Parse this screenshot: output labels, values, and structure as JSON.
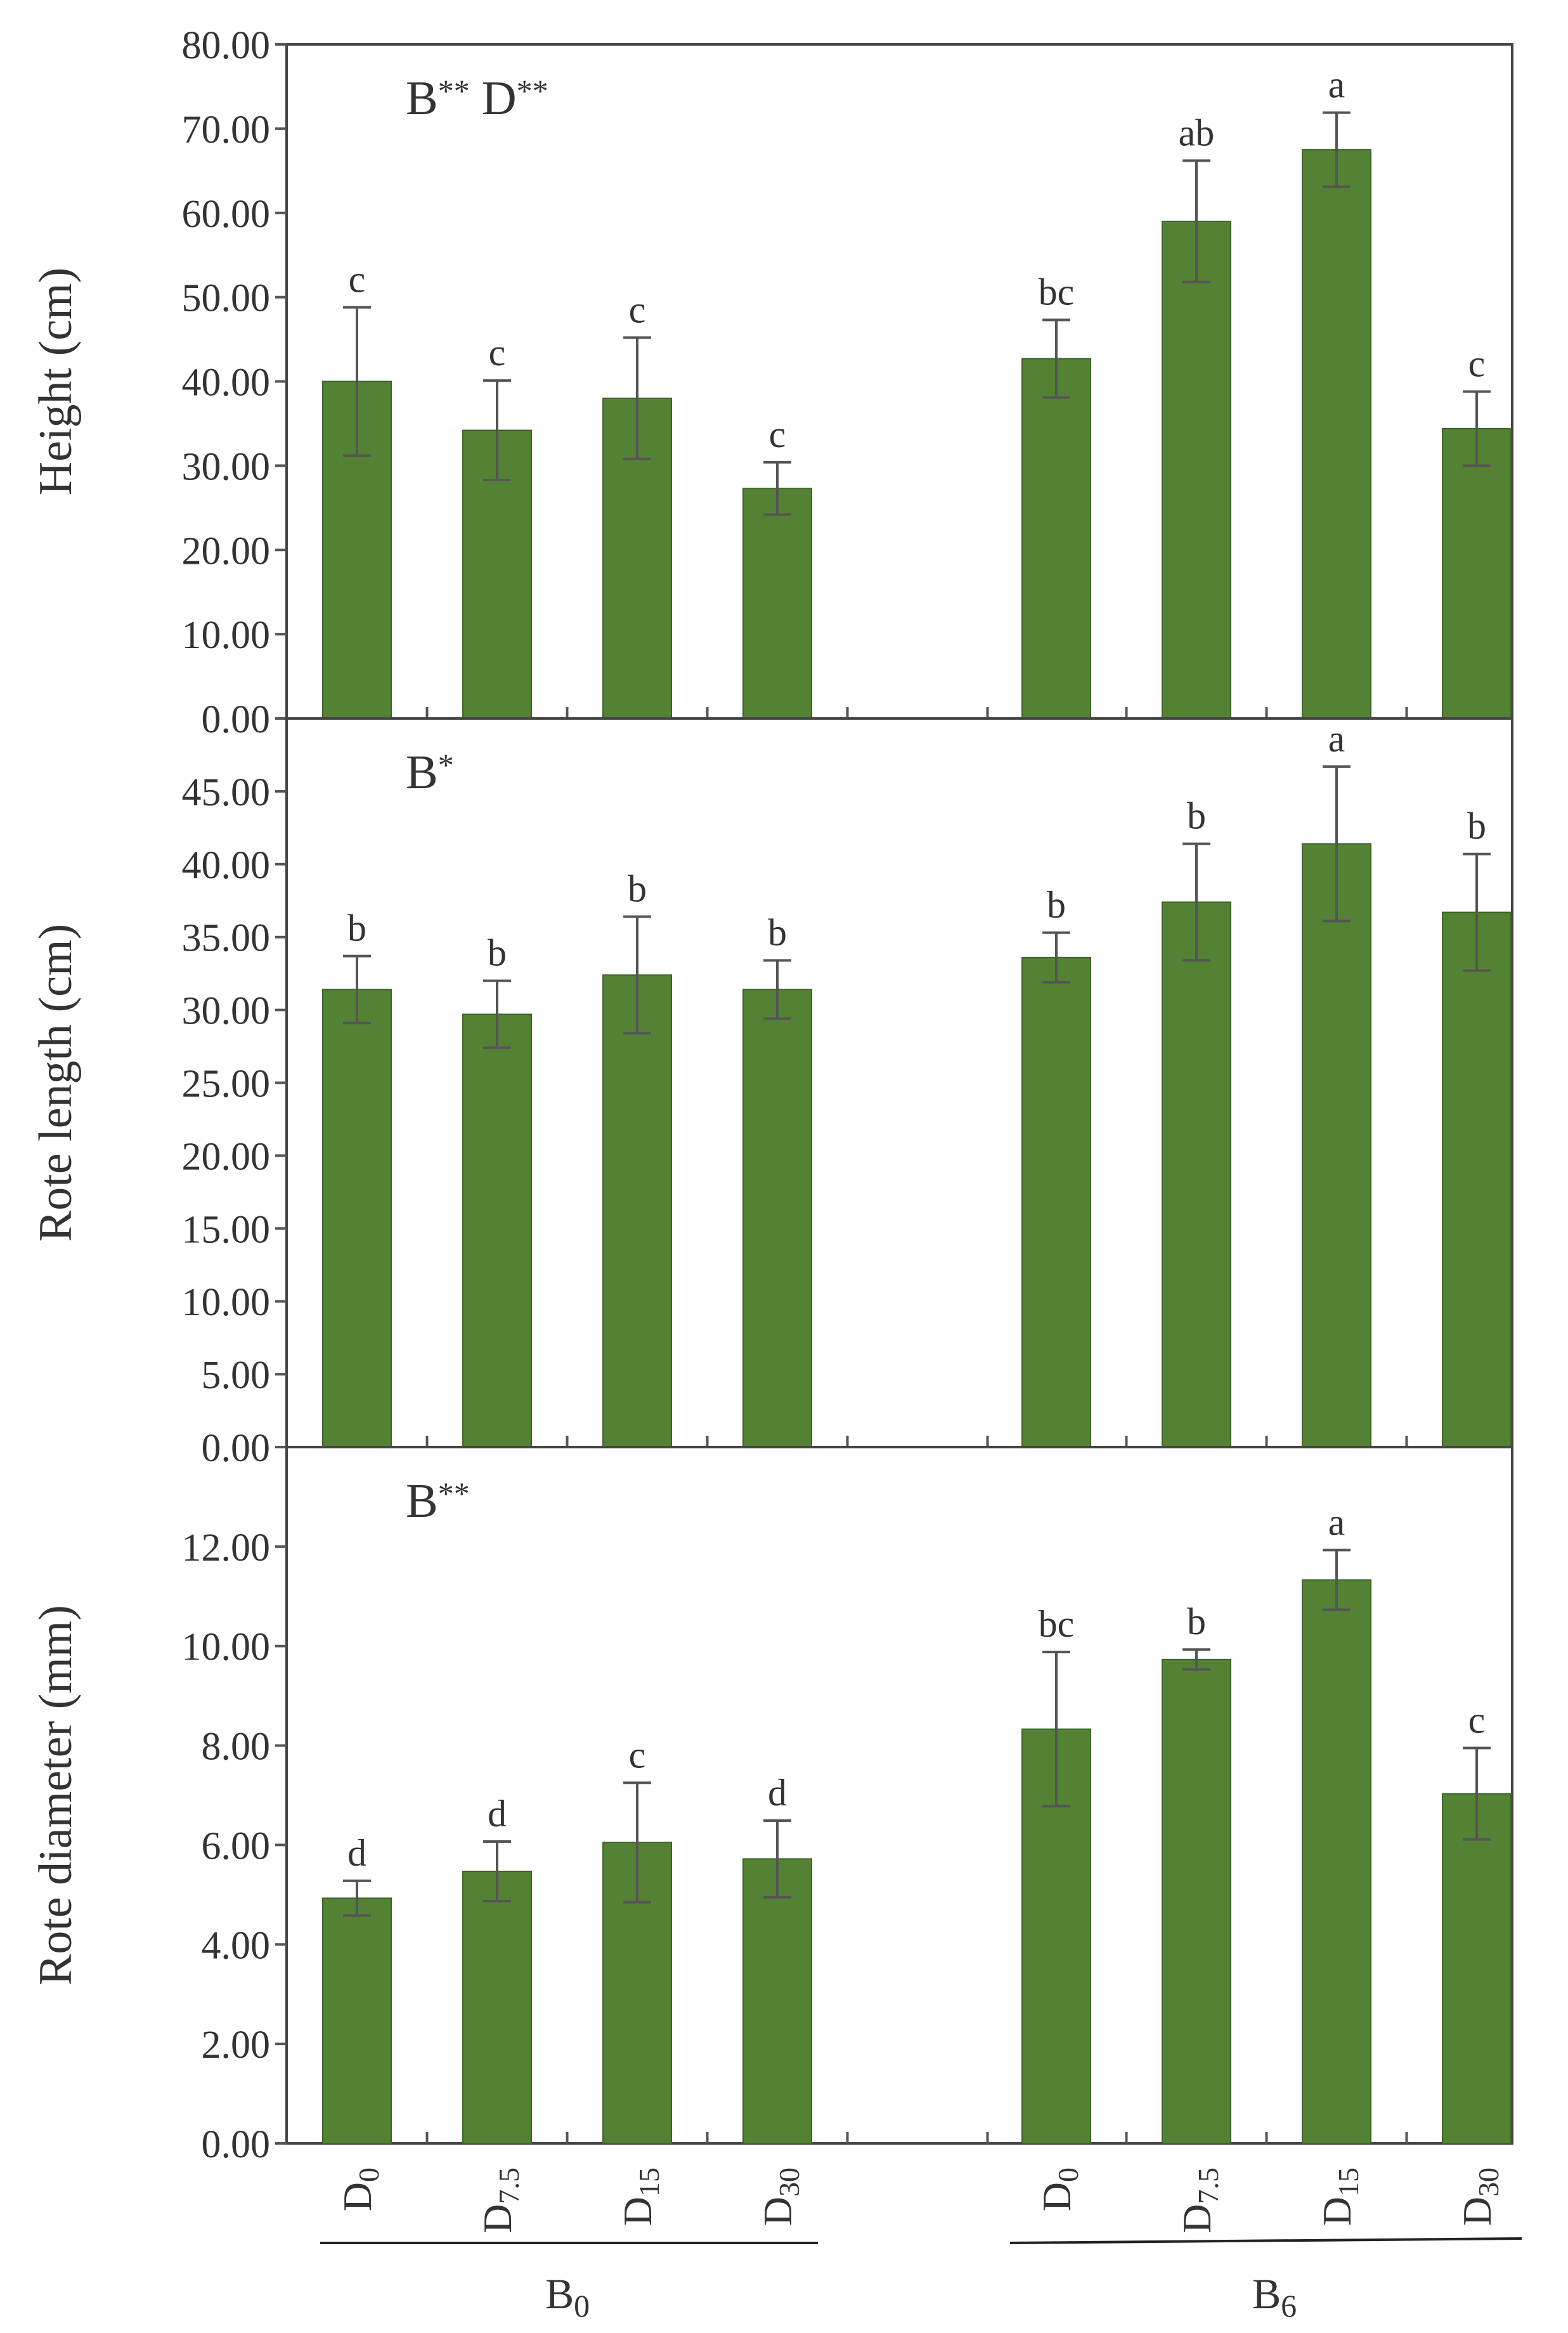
{
  "chart_data": [
    {
      "type": "bar",
      "ylabel": "Height (cm)",
      "ylim": [
        0,
        80
      ],
      "yticks": [
        0,
        10,
        20,
        30,
        40,
        50,
        60,
        70,
        80
      ],
      "tick_format": "0.00",
      "annotation": {
        "main": "B",
        "sup": "**",
        "main2": "D",
        "sup2": "**"
      },
      "categories": [
        "D0",
        "D7.5",
        "D15",
        "D30",
        "D0",
        "D7.5",
        "D15",
        "D30"
      ],
      "groups": [
        "B0",
        "B0",
        "B0",
        "B0",
        "B6",
        "B6",
        "B6",
        "B6"
      ],
      "values": [
        40.0,
        34.2,
        38.0,
        27.3,
        42.7,
        59.0,
        67.5,
        34.4
      ],
      "errors": [
        8.8,
        5.9,
        7.2,
        3.1,
        4.6,
        7.2,
        4.4,
        4.4
      ],
      "letters": [
        "c",
        "c",
        "c",
        "c",
        "bc",
        "ab",
        "a",
        "c"
      ]
    },
    {
      "type": "bar",
      "ylabel": "Rote length (cm)",
      "ylim": [
        0,
        50
      ],
      "yticks": [
        0,
        5,
        10,
        15,
        20,
        25,
        30,
        35,
        40,
        45
      ],
      "tick_format": "0.00",
      "annotation": {
        "main": "B",
        "sup": "*",
        "main2": "",
        "sup2": ""
      },
      "categories": [
        "D0",
        "D7.5",
        "D15",
        "D30",
        "D0",
        "D7.5",
        "D15",
        "D30"
      ],
      "groups": [
        "B0",
        "B0",
        "B0",
        "B0",
        "B6",
        "B6",
        "B6",
        "B6"
      ],
      "values": [
        31.4,
        29.7,
        32.4,
        31.4,
        33.6,
        37.4,
        41.4,
        36.7
      ],
      "errors": [
        2.3,
        2.3,
        4.0,
        2.0,
        1.7,
        4.0,
        5.3,
        4.0
      ],
      "letters": [
        "b",
        "b",
        "b",
        "b",
        "b",
        "b",
        "a",
        "b"
      ]
    },
    {
      "type": "bar",
      "ylabel": "Rote diameter (mm)",
      "ylim": [
        0,
        14
      ],
      "yticks": [
        0,
        2,
        4,
        6,
        8,
        10,
        12
      ],
      "tick_format": "0.00",
      "annotation": {
        "main": "B",
        "sup": "**",
        "main2": "",
        "sup2": ""
      },
      "categories": [
        "D0",
        "D7.5",
        "D15",
        "D30",
        "D0",
        "D7.5",
        "D15",
        "D30"
      ],
      "groups": [
        "B0",
        "B0",
        "B0",
        "B0",
        "B6",
        "B6",
        "B6",
        "B6"
      ],
      "values": [
        4.93,
        5.47,
        6.05,
        5.72,
        8.33,
        9.73,
        11.33,
        7.03
      ],
      "errors": [
        0.35,
        0.6,
        1.2,
        0.77,
        1.55,
        0.2,
        0.6,
        0.92
      ],
      "letters": [
        "d",
        "d",
        "c",
        "d",
        "bc",
        "b",
        "a",
        "c"
      ]
    }
  ],
  "x_axis": {
    "category_labels": [
      {
        "main": "D",
        "sub": "0"
      },
      {
        "main": "D",
        "sub": "7.5"
      },
      {
        "main": "D",
        "sub": "15"
      },
      {
        "main": "D",
        "sub": "30"
      },
      {
        "main": "D",
        "sub": "0"
      },
      {
        "main": "D",
        "sub": "7.5"
      },
      {
        "main": "D",
        "sub": "15"
      },
      {
        "main": "D",
        "sub": "30"
      }
    ],
    "group_labels": [
      {
        "main": "B",
        "sub": "0"
      },
      {
        "main": "B",
        "sub": "6"
      }
    ]
  },
  "colors": {
    "bar": "#548235",
    "bar_edge": "#3d6326",
    "error_bar": "#555555",
    "axis": "#555555",
    "frame": "#444444"
  }
}
